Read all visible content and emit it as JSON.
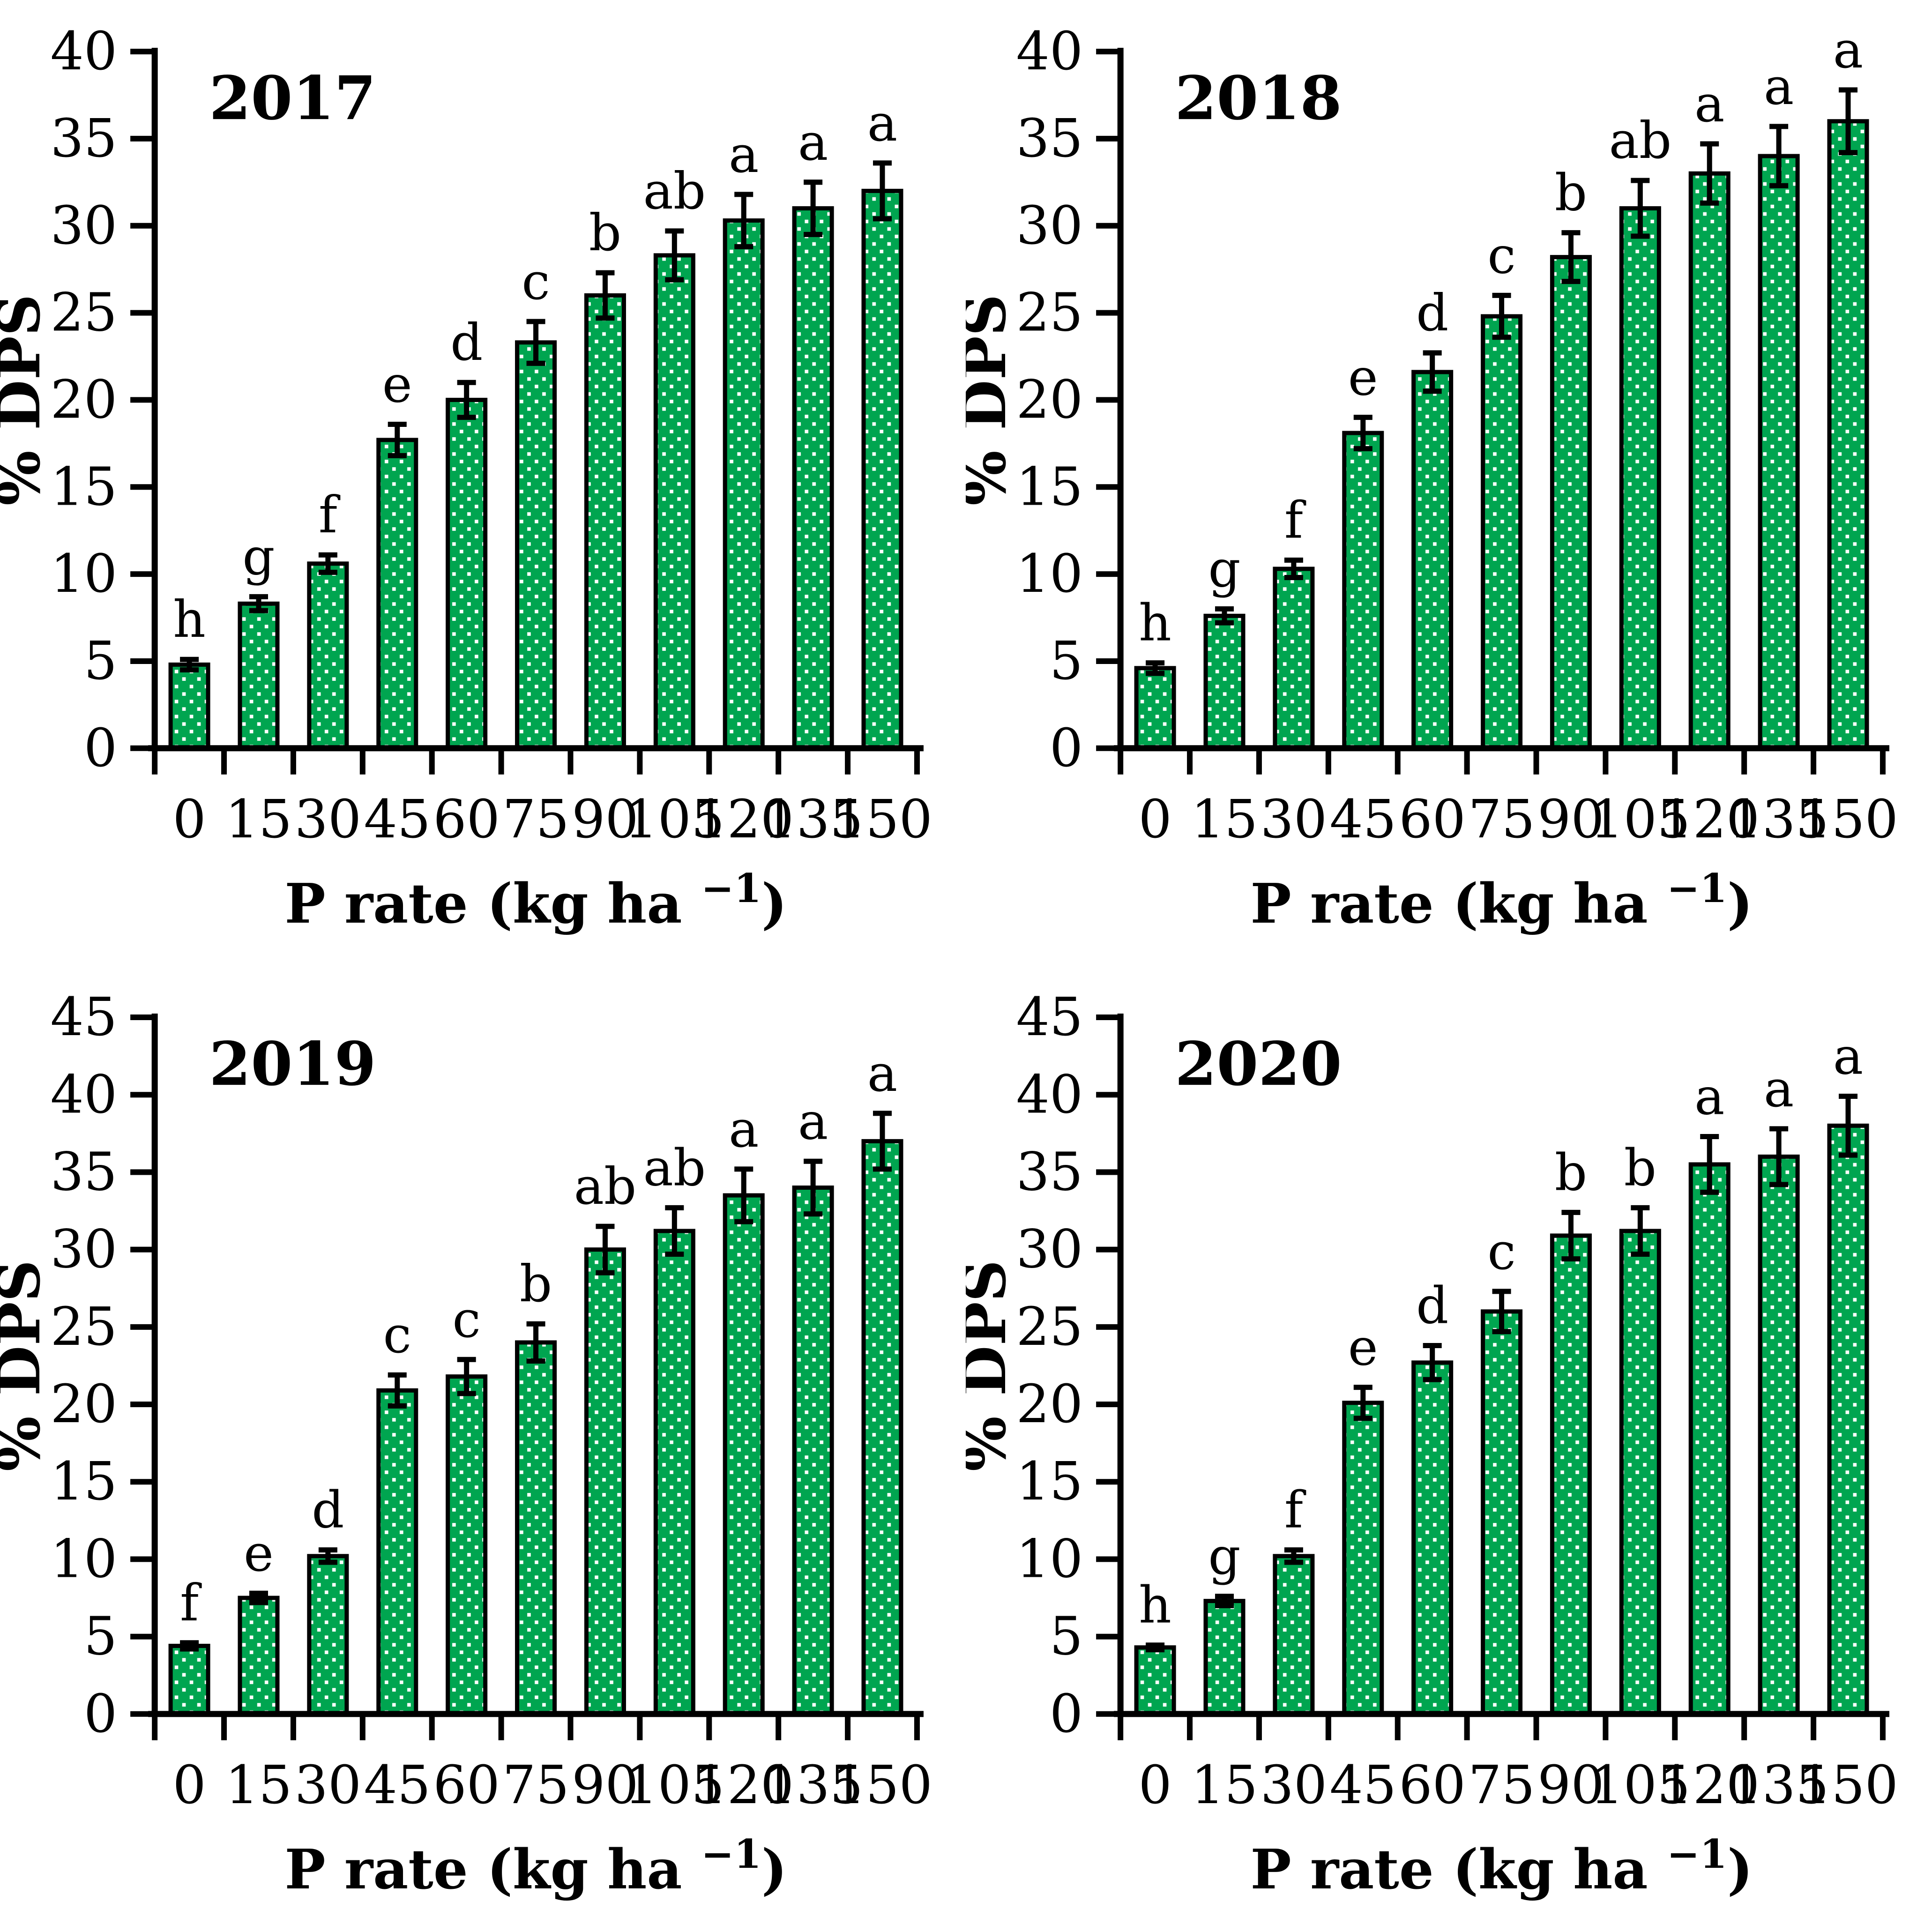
{
  "figure": {
    "background": "#ffffff",
    "bar_fill_color": "#00a550",
    "bar_pattern": "staggered-white-squares",
    "bar_border_color": "#000000",
    "error_bar_color": "#000000",
    "axis_color": "#000000",
    "text_color": "#000000"
  },
  "chart_data": [
    {
      "type": "bar",
      "title": "2017",
      "ylabel": "% DPS",
      "xlabel_prefix": "P rate  (kg ha",
      "xlabel_sup": "−1",
      "xlabel_suffix": ")",
      "categories": [
        "0",
        "15",
        "30",
        "45",
        "60",
        "75",
        "90",
        "105",
        "120",
        "135",
        "150"
      ],
      "values": [
        4.8,
        8.3,
        10.6,
        17.7,
        20.0,
        23.3,
        26.0,
        28.3,
        30.3,
        31.0,
        32.0
      ],
      "errors": [
        0.3,
        0.4,
        0.5,
        0.9,
        1.0,
        1.2,
        1.3,
        1.4,
        1.5,
        1.5,
        1.6
      ],
      "letters": [
        "h",
        "g",
        "f",
        "e",
        "d",
        "c",
        "b",
        "ab",
        "a",
        "a",
        "a"
      ],
      "ylim": [
        0,
        40
      ],
      "ytick_step": 5,
      "grid": false,
      "legend": "none"
    },
    {
      "type": "bar",
      "title": "2018",
      "ylabel": "% DPS",
      "xlabel_prefix": "P rate  (kg ha",
      "xlabel_sup": "−1",
      "xlabel_suffix": ")",
      "categories": [
        "0",
        "15",
        "30",
        "45",
        "60",
        "75",
        "90",
        "105",
        "120",
        "135",
        "150"
      ],
      "values": [
        4.6,
        7.6,
        10.3,
        18.1,
        21.6,
        24.8,
        28.2,
        31.0,
        33.0,
        34.0,
        36.0
      ],
      "errors": [
        0.3,
        0.4,
        0.5,
        0.9,
        1.1,
        1.2,
        1.4,
        1.6,
        1.7,
        1.7,
        1.8
      ],
      "letters": [
        "h",
        "g",
        "f",
        "e",
        "d",
        "c",
        "b",
        "ab",
        "a",
        "a",
        "a"
      ],
      "ylim": [
        0,
        40
      ],
      "ytick_step": 5,
      "grid": false,
      "legend": "none"
    },
    {
      "type": "bar",
      "title": "2019",
      "ylabel": "% DPS",
      "xlabel_prefix": "P rate  (kg ha",
      "xlabel_sup": "−1",
      "xlabel_suffix": ")",
      "categories": [
        "0",
        "15",
        "30",
        "45",
        "60",
        "75",
        "90",
        "105",
        "120",
        "135",
        "150"
      ],
      "values": [
        4.4,
        7.5,
        10.2,
        20.9,
        21.8,
        24.0,
        30.0,
        31.2,
        33.5,
        34.0,
        37.0
      ],
      "errors": [
        0.2,
        0.3,
        0.4,
        1.0,
        1.1,
        1.2,
        1.5,
        1.5,
        1.7,
        1.7,
        1.8
      ],
      "letters": [
        "f",
        "e",
        "d",
        "c",
        "c",
        "b",
        "ab",
        "ab",
        "a",
        "a",
        "a"
      ],
      "ylim": [
        0,
        45
      ],
      "ytick_step": 5,
      "grid": false,
      "legend": "none"
    },
    {
      "type": "bar",
      "title": "2020",
      "ylabel": "% DPS",
      "xlabel_prefix": "P rate  (kg ha",
      "xlabel_sup": "−1",
      "xlabel_suffix": ")",
      "categories": [
        "0",
        "15",
        "30",
        "45",
        "60",
        "75",
        "90",
        "105",
        "120",
        "135",
        "150"
      ],
      "values": [
        4.3,
        7.3,
        10.2,
        20.1,
        22.7,
        26.0,
        30.9,
        31.2,
        35.5,
        36.0,
        38.0
      ],
      "errors": [
        0.15,
        0.3,
        0.4,
        1.0,
        1.1,
        1.3,
        1.5,
        1.5,
        1.8,
        1.8,
        1.9
      ],
      "letters": [
        "h",
        "g",
        "f",
        "e",
        "d",
        "c",
        "b",
        "b",
        "a",
        "a",
        "a"
      ],
      "ylim": [
        0,
        45
      ],
      "ytick_step": 5,
      "grid": false,
      "legend": "none"
    }
  ]
}
